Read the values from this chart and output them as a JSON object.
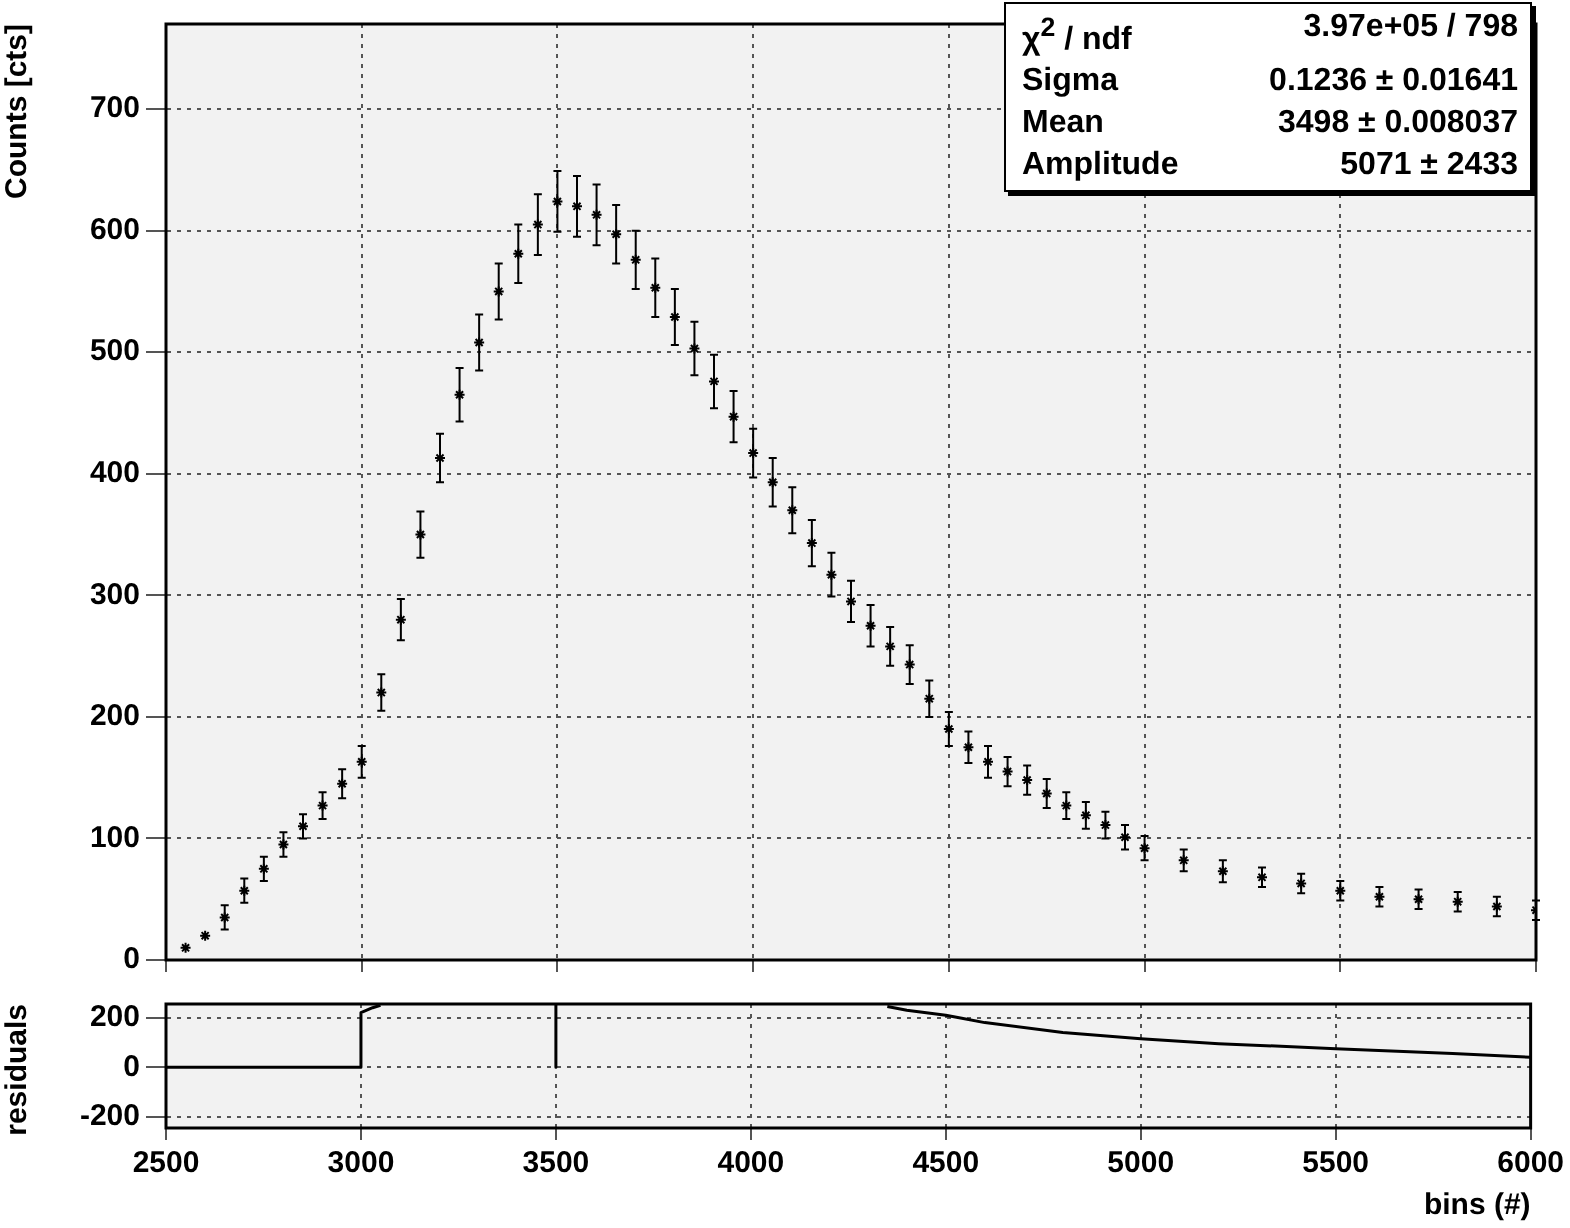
{
  "chart_data": [
    {
      "type": "scatter",
      "ylabel": "Counts [cts]",
      "xlim": [
        2500,
        6000
      ],
      "xticks": [
        2500,
        3000,
        3500,
        4000,
        4500,
        5000,
        5500,
        6000
      ],
      "ylim": [
        0,
        770
      ],
      "yticks": [
        0,
        100,
        200,
        300,
        400,
        500,
        600,
        700
      ],
      "grid": true,
      "tick_labels": "y",
      "marker": "cross",
      "annotations": [
        "χ$^{2}$ / ndf",
        "3.97e+05 / 798",
        "Sigma",
        "0.1236 ± 0.01641",
        "Mean",
        "3498 ± 0.008037",
        "Amplitude",
        "5071 ±  2433"
      ],
      "series": [
        {
          "color": "#000000",
          "x": [
            2550,
            2600,
            2650,
            2700,
            2750,
            2800,
            2850,
            2900,
            2950,
            3000,
            3050,
            3100,
            3150,
            3200,
            3250,
            3300,
            3350,
            3400,
            3450,
            3500,
            3550,
            3600,
            3650,
            3700,
            3750,
            3800,
            3850,
            3900,
            3950,
            4000,
            4050,
            4100,
            4150,
            4200,
            4250,
            4300,
            4350,
            4400,
            4450,
            4500,
            4550,
            4600,
            4650,
            4700,
            4750,
            4800,
            4850,
            4900,
            4950,
            5000,
            5100,
            5200,
            5300,
            5400,
            5500,
            5600,
            5700,
            5800,
            5900,
            6000
          ],
          "values": [
            10,
            20,
            35,
            57,
            75,
            95,
            110,
            127,
            145,
            163,
            220,
            280,
            350,
            413,
            465,
            508,
            550,
            581,
            605,
            624,
            620,
            613,
            597,
            576,
            553,
            529,
            503,
            476,
            447,
            417,
            393,
            370,
            343,
            317,
            295,
            275,
            258,
            243,
            215,
            190,
            175,
            163,
            155,
            148,
            137,
            127,
            119,
            111,
            101,
            92,
            82,
            73,
            68,
            63,
            57,
            52,
            50,
            48,
            44,
            41
          ],
          "errors": [
            null,
            null,
            10,
            10,
            10,
            10,
            10,
            11,
            12,
            13,
            15,
            17,
            19,
            20,
            22,
            23,
            23,
            24,
            25,
            25,
            25,
            25,
            24,
            24,
            24,
            23,
            22,
            22,
            21,
            20,
            20,
            19,
            19,
            18,
            17,
            17,
            16,
            16,
            15,
            14,
            13,
            13,
            12,
            12,
            12,
            11,
            11,
            11,
            10,
            10,
            9,
            9,
            8,
            8,
            8,
            8,
            8,
            8,
            8,
            8
          ]
        }
      ]
    },
    {
      "type": "line",
      "xlabel": "bins (#)",
      "ylabel": "residuals",
      "xlim": [
        2500,
        6000
      ],
      "xticks": [
        2500,
        3000,
        3500,
        4000,
        4500,
        5000,
        5500,
        6000
      ],
      "ylim": [
        -245,
        255
      ],
      "yticks": [
        -200,
        0,
        200
      ],
      "grid": true,
      "marker": "none",
      "series": [
        {
          "color": "#000000",
          "x": [
            2500,
            2750,
            2999,
            3000,
            3030,
            3050,
            3100,
            3500,
            3500,
            3600,
            4350,
            4400,
            4500,
            4600,
            4800,
            5000,
            5200,
            5500,
            5800,
            6000
          ],
          "values": [
            0,
            0,
            0,
            220,
            240,
            250,
            null,
            255,
            0,
            null,
            245,
            230,
            210,
            180,
            140,
            115,
            95,
            75,
            55,
            40
          ]
        }
      ]
    }
  ]
}
